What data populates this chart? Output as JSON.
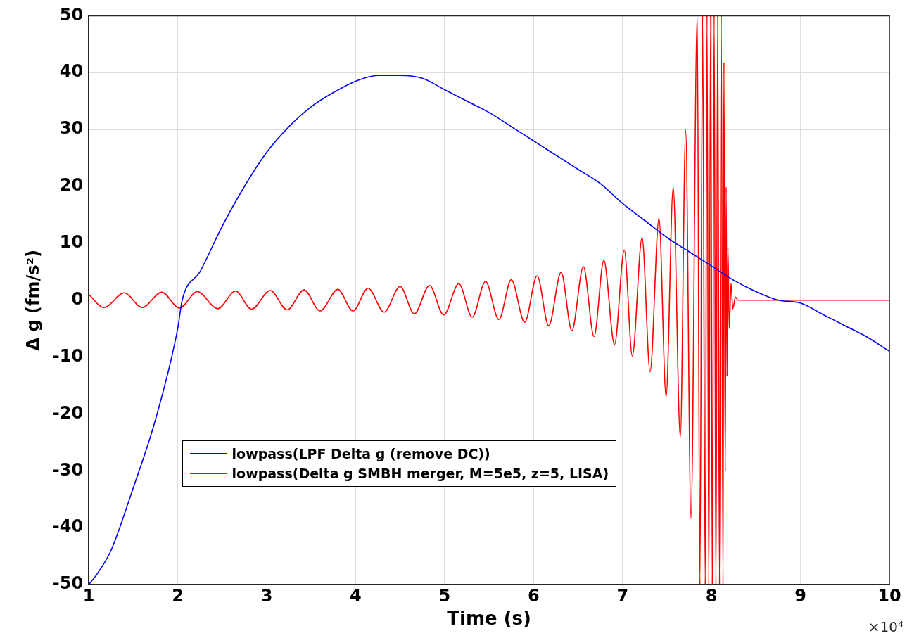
{
  "chart_data": {
    "type": "line",
    "xlabel": "Time (s)",
    "ylabel": "Δ g (fm/s²)",
    "xlim": [
      1,
      10
    ],
    "ylim": [
      -50,
      50
    ],
    "xticks": [
      1,
      2,
      3,
      4,
      5,
      6,
      7,
      8,
      9,
      10
    ],
    "yticks": [
      -50,
      -40,
      -30,
      -20,
      -10,
      0,
      10,
      20,
      30,
      40,
      50
    ],
    "grid": true,
    "legend": "bottom",
    "marker": "none",
    "line_style": "solid",
    "annotations": [
      "×10⁴"
    ],
    "series": [
      {
        "name": "lowpass(LPF Delta g (remove DC))",
        "color": "#0000ff",
        "x": [
          1,
          1.1,
          1.25,
          1.5,
          1.75,
          2,
          2.05,
          2.25,
          2.5,
          2.75,
          3,
          3.25,
          3.5,
          3.75,
          4,
          4.25,
          4.5,
          4.75,
          5,
          5.25,
          5.5,
          5.75,
          6,
          6.25,
          6.5,
          6.75,
          7,
          7.25,
          7.5,
          7.75,
          8,
          8.25,
          8.5,
          8.75,
          9,
          9.25,
          9.5,
          9.75,
          10
        ],
        "values": [
          -50,
          -48,
          -44,
          -33,
          -21,
          -5,
          0,
          5,
          13,
          20,
          26,
          30.5,
          34,
          36.5,
          38.5,
          39.5,
          39.5,
          39,
          37,
          35,
          33,
          30.5,
          28,
          25.5,
          23,
          20.5,
          17,
          14,
          11,
          8.5,
          6,
          3.5,
          1.5,
          0,
          -0.5,
          -2.5,
          -4.5,
          -6.5,
          -9
        ]
      },
      {
        "name": "lowpass(Delta g SMBH merger, M=5e5, z=5, LISA)",
        "color": "#ff0000",
        "x": [
          1,
          1.17,
          1.4,
          1.6,
          1.82,
          2.02,
          2.22,
          2.45,
          2.65,
          2.83,
          3.04,
          3.23,
          3.42,
          3.6,
          3.8,
          3.97,
          4.14,
          4.32,
          4.5,
          4.66,
          4.83,
          4.99,
          5.16,
          5.31,
          5.46,
          5.61,
          5.75,
          5.9,
          6.04,
          6.17,
          6.31,
          6.43,
          6.56,
          6.68,
          6.79,
          6.91,
          7.02,
          7.11,
          7.22,
          7.31,
          7.41,
          7.49,
          7.57,
          7.65,
          7.71,
          7.77,
          7.84,
          7.87,
          7.9,
          7.93,
          7.95,
          7.97,
          7.99,
          8.01,
          8.03,
          8.05,
          8.07,
          8.09,
          8.11,
          8.13,
          8.14,
          8.155,
          8.165,
          8.175,
          8.185,
          8.2,
          8.22,
          8.24,
          8.27,
          8.3,
          10
        ],
        "values": [
          1,
          -1.3,
          1.3,
          -1.3,
          1.4,
          -1.4,
          1.5,
          -1.5,
          1.6,
          -1.6,
          1.7,
          -1.7,
          1.8,
          -1.9,
          1.9,
          -1.9,
          2.1,
          -2.1,
          2.4,
          -2.4,
          2.6,
          -2.6,
          2.9,
          -3,
          3.3,
          -3.4,
          3.6,
          -3.9,
          4.3,
          -4.5,
          4.9,
          -5.4,
          5.9,
          -6.4,
          7,
          -7.8,
          8.8,
          -9.8,
          11,
          -12.6,
          14.4,
          -17,
          19.9,
          -24.1,
          29.9,
          -38.4,
          50,
          -50,
          50,
          -50,
          50,
          -50,
          50,
          -50,
          50,
          -50,
          50,
          -50,
          50,
          -50,
          41.8,
          -30,
          19.9,
          -13.4,
          9.2,
          -5,
          3,
          -1.5,
          0.5,
          0,
          0
        ]
      }
    ]
  }
}
